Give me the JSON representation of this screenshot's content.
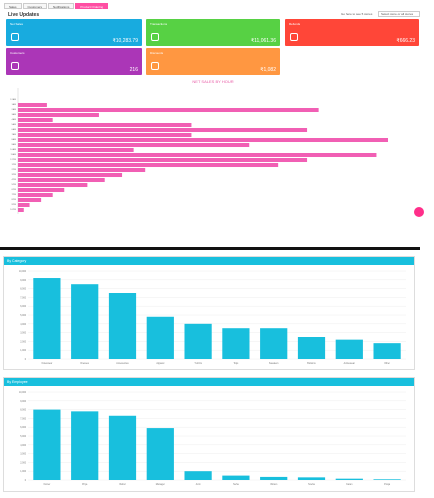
{
  "tabs": [
    "Sales",
    "Customers",
    "Notifications",
    "Product Ordering"
  ],
  "live_title": "Live Updates",
  "filter": {
    "label": "Go here to see 5 stores",
    "selected": "Select store or all stores"
  },
  "cards": [
    {
      "title": "Net Sales",
      "value": "₹10,283.79",
      "color": "#18abdf",
      "icon": "register-icon"
    },
    {
      "title": "Transactions",
      "value": "₹11,061.36",
      "color": "#57d144",
      "icon": "receipt-icon"
    },
    {
      "title": "Refunds",
      "value": "₹666.23",
      "color": "#ff4638",
      "icon": "bag-icon"
    },
    {
      "title": "Customers",
      "value": "216",
      "color": "#ab36b7",
      "icon": "user-icon"
    },
    {
      "title": "Discounts",
      "value": "₹1,082",
      "color": "#ff9741",
      "icon": "tag-icon"
    }
  ],
  "chart_data": [
    {
      "type": "bar",
      "orientation": "horizontal",
      "title": "NET SALES BY HOUR",
      "categories": [
        "12AM",
        "1AM",
        "2AM",
        "3AM",
        "4AM",
        "5AM",
        "6AM",
        "7AM",
        "8AM",
        "9AM",
        "10AM",
        "11AM",
        "12PM",
        "1PM",
        "2PM",
        "3PM",
        "4PM",
        "5PM",
        "6PM",
        "7PM",
        "8PM",
        "9PM",
        "10PM"
      ],
      "values": [
        0,
        50,
        520,
        140,
        60,
        300,
        500,
        300,
        640,
        400,
        200,
        620,
        500,
        450,
        220,
        180,
        150,
        120,
        80,
        60,
        40,
        20,
        10
      ],
      "color": "#f15fb4"
    },
    {
      "type": "bar",
      "title": "By Category",
      "categories": [
        "Outerwear",
        "Dresses",
        "Accessories",
        "Apparel",
        "T-shirts",
        "Tops",
        "Sweaters",
        "Bottoms",
        "Activewear",
        "Other"
      ],
      "values": [
        9200,
        8500,
        7500,
        4800,
        4000,
        3500,
        3500,
        2500,
        2200,
        1800
      ],
      "ylim": [
        0,
        10000
      ],
      "color": "#18bfdd"
    },
    {
      "type": "bar",
      "title": "By Employee",
      "categories": [
        "Owner",
        "Priya",
        "Rahul",
        "Manager",
        "Amit",
        "Neha",
        "Vikram",
        "Sneha",
        "Karan",
        "Pooja"
      ],
      "values": [
        8000,
        7800,
        7300,
        5900,
        1000,
        500,
        350,
        300,
        150,
        80
      ],
      "ylim": [
        0,
        10000
      ],
      "color": "#18bfdd"
    }
  ]
}
